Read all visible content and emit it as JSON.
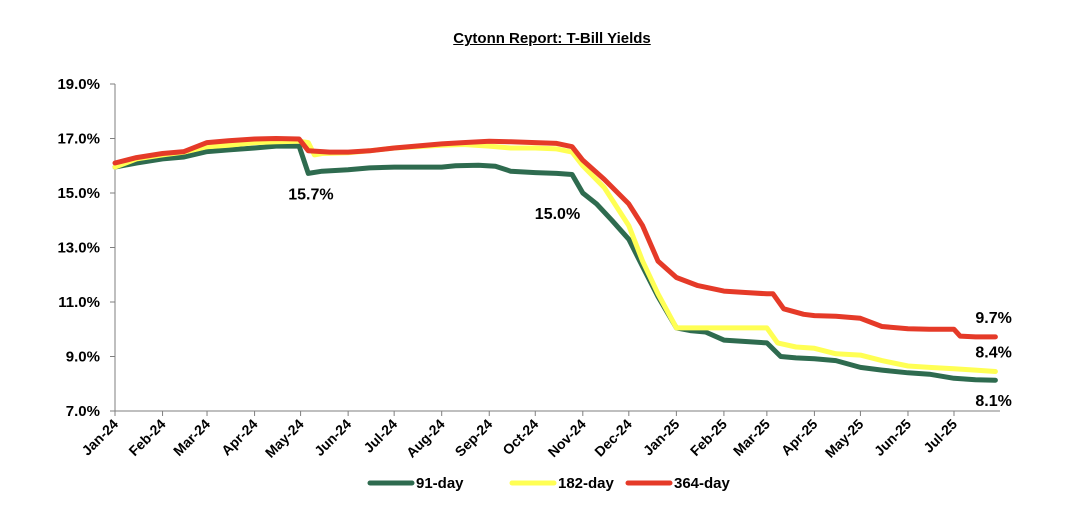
{
  "chart_data": {
    "type": "line",
    "title": "Cytonn Report: T-Bill Yields",
    "xlabel": "",
    "ylabel": "",
    "ylim": [
      7.0,
      19.0
    ],
    "y_ticks": [
      "7.0%",
      "9.0%",
      "11.0%",
      "13.0%",
      "15.0%",
      "17.0%",
      "19.0%"
    ],
    "y_tick_values": [
      7,
      9,
      11,
      13,
      15,
      17,
      19
    ],
    "x_ticks": [
      "Jan-24",
      "Feb-24",
      "Mar-24",
      "Apr-24",
      "May-24",
      "Jun-24",
      "Jul-24",
      "Aug-24",
      "Sep-24",
      "Oct-24",
      "Nov-24",
      "Dec-24",
      "Jan-25",
      "Feb-25",
      "Mar-25",
      "Apr-25",
      "May-25",
      "Jun-25",
      "Jul-25"
    ],
    "x_tick_dates": [
      "2024-01-01",
      "2024-02-01",
      "2024-03-01",
      "2024-04-01",
      "2024-05-01",
      "2024-06-01",
      "2024-07-01",
      "2024-08-01",
      "2024-09-01",
      "2024-10-01",
      "2024-11-01",
      "2024-12-01",
      "2025-01-01",
      "2025-02-01",
      "2025-03-01",
      "2025-04-01",
      "2025-05-01",
      "2025-06-01",
      "2025-07-01"
    ],
    "grid": false,
    "legend": "bottom",
    "series": [
      {
        "name": "91-day",
        "color": "#2e6b4f",
        "points": [
          [
            "2024-01-01",
            15.95
          ],
          [
            "2024-01-15",
            16.1
          ],
          [
            "2024-02-01",
            16.25
          ],
          [
            "2024-02-15",
            16.32
          ],
          [
            "2024-03-01",
            16.52
          ],
          [
            "2024-03-15",
            16.58
          ],
          [
            "2024-04-01",
            16.65
          ],
          [
            "2024-04-15",
            16.72
          ],
          [
            "2024-04-30",
            16.72
          ],
          [
            "2024-05-06",
            15.72
          ],
          [
            "2024-05-15",
            15.8
          ],
          [
            "2024-06-01",
            15.85
          ],
          [
            "2024-06-15",
            15.92
          ],
          [
            "2024-07-01",
            15.95
          ],
          [
            "2024-08-01",
            15.95
          ],
          [
            "2024-08-10",
            16.0
          ],
          [
            "2024-08-25",
            16.02
          ],
          [
            "2024-09-05",
            15.98
          ],
          [
            "2024-09-15",
            15.8
          ],
          [
            "2024-10-01",
            15.75
          ],
          [
            "2024-10-15",
            15.72
          ],
          [
            "2024-10-25",
            15.68
          ],
          [
            "2024-11-01",
            15.0
          ],
          [
            "2024-11-10",
            14.6
          ],
          [
            "2024-11-20",
            14.0
          ],
          [
            "2024-12-01",
            13.3
          ],
          [
            "2024-12-10",
            12.3
          ],
          [
            "2024-12-20",
            11.2
          ],
          [
            "2025-01-01",
            10.05
          ],
          [
            "2025-01-10",
            9.95
          ],
          [
            "2025-01-20",
            9.9
          ],
          [
            "2025-02-01",
            9.6
          ],
          [
            "2025-02-15",
            9.55
          ],
          [
            "2025-03-01",
            9.5
          ],
          [
            "2025-03-10",
            9.0
          ],
          [
            "2025-03-20",
            8.95
          ],
          [
            "2025-04-01",
            8.92
          ],
          [
            "2025-04-15",
            8.85
          ],
          [
            "2025-05-01",
            8.6
          ],
          [
            "2025-05-15",
            8.5
          ],
          [
            "2025-06-01",
            8.4
          ],
          [
            "2025-06-15",
            8.35
          ],
          [
            "2025-07-01",
            8.2
          ],
          [
            "2025-07-15",
            8.15
          ],
          [
            "2025-07-28",
            8.13
          ]
        ]
      },
      {
        "name": "182-day",
        "color": "#ffff54",
        "points": [
          [
            "2024-01-01",
            15.95
          ],
          [
            "2024-01-15",
            16.25
          ],
          [
            "2024-02-01",
            16.4
          ],
          [
            "2024-02-15",
            16.5
          ],
          [
            "2024-03-01",
            16.7
          ],
          [
            "2024-03-15",
            16.75
          ],
          [
            "2024-04-01",
            16.85
          ],
          [
            "2024-04-15",
            16.88
          ],
          [
            "2024-04-30",
            16.9
          ],
          [
            "2024-05-06",
            16.85
          ],
          [
            "2024-05-10",
            16.4
          ],
          [
            "2024-05-15",
            16.45
          ],
          [
            "2024-06-01",
            16.48
          ],
          [
            "2024-06-15",
            16.55
          ],
          [
            "2024-07-01",
            16.65
          ],
          [
            "2024-08-01",
            16.75
          ],
          [
            "2024-08-15",
            16.78
          ],
          [
            "2024-09-01",
            16.72
          ],
          [
            "2024-09-15",
            16.65
          ],
          [
            "2024-10-01",
            16.65
          ],
          [
            "2024-10-15",
            16.62
          ],
          [
            "2024-10-25",
            16.5
          ],
          [
            "2024-11-01",
            16.0
          ],
          [
            "2024-11-15",
            15.2
          ],
          [
            "2024-12-01",
            13.8
          ],
          [
            "2024-12-10",
            12.5
          ],
          [
            "2024-12-20",
            11.3
          ],
          [
            "2025-01-01",
            10.05
          ],
          [
            "2025-01-20",
            10.05
          ],
          [
            "2025-02-01",
            10.05
          ],
          [
            "2025-03-01",
            10.05
          ],
          [
            "2025-03-08",
            9.5
          ],
          [
            "2025-03-20",
            9.35
          ],
          [
            "2025-04-01",
            9.3
          ],
          [
            "2025-04-15",
            9.1
          ],
          [
            "2025-05-01",
            9.05
          ],
          [
            "2025-05-15",
            8.85
          ],
          [
            "2025-06-01",
            8.65
          ],
          [
            "2025-06-15",
            8.6
          ],
          [
            "2025-07-01",
            8.55
          ],
          [
            "2025-07-15",
            8.5
          ],
          [
            "2025-07-28",
            8.45
          ]
        ]
      },
      {
        "name": "364-day",
        "color": "#e53a28",
        "points": [
          [
            "2024-01-01",
            16.1
          ],
          [
            "2024-01-15",
            16.3
          ],
          [
            "2024-02-01",
            16.45
          ],
          [
            "2024-02-15",
            16.52
          ],
          [
            "2024-03-01",
            16.85
          ],
          [
            "2024-03-15",
            16.92
          ],
          [
            "2024-04-01",
            16.98
          ],
          [
            "2024-04-15",
            17.0
          ],
          [
            "2024-04-30",
            16.98
          ],
          [
            "2024-05-06",
            16.55
          ],
          [
            "2024-05-20",
            16.5
          ],
          [
            "2024-06-01",
            16.5
          ],
          [
            "2024-06-15",
            16.55
          ],
          [
            "2024-07-01",
            16.65
          ],
          [
            "2024-08-01",
            16.8
          ],
          [
            "2024-08-15",
            16.85
          ],
          [
            "2024-09-01",
            16.9
          ],
          [
            "2024-09-15",
            16.88
          ],
          [
            "2024-10-01",
            16.85
          ],
          [
            "2024-10-15",
            16.82
          ],
          [
            "2024-10-25",
            16.7
          ],
          [
            "2024-11-01",
            16.2
          ],
          [
            "2024-11-15",
            15.5
          ],
          [
            "2024-12-01",
            14.6
          ],
          [
            "2024-12-10",
            13.8
          ],
          [
            "2024-12-20",
            12.5
          ],
          [
            "2025-01-01",
            11.9
          ],
          [
            "2025-01-15",
            11.6
          ],
          [
            "2025-02-01",
            11.4
          ],
          [
            "2025-02-15",
            11.35
          ],
          [
            "2025-03-01",
            11.3
          ],
          [
            "2025-03-05",
            11.3
          ],
          [
            "2025-03-12",
            10.75
          ],
          [
            "2025-03-25",
            10.55
          ],
          [
            "2025-04-01",
            10.5
          ],
          [
            "2025-04-15",
            10.48
          ],
          [
            "2025-05-01",
            10.4
          ],
          [
            "2025-05-15",
            10.1
          ],
          [
            "2025-06-01",
            10.02
          ],
          [
            "2025-06-15",
            10.0
          ],
          [
            "2025-07-01",
            10.0
          ],
          [
            "2025-07-05",
            9.75
          ],
          [
            "2025-07-15",
            9.72
          ],
          [
            "2025-07-28",
            9.72
          ]
        ]
      }
    ],
    "annotations": [
      {
        "text": "15.7%",
        "date": "2024-05-06",
        "value": 15.72,
        "anchor": "below"
      },
      {
        "text": "15.0%",
        "date": "2024-11-01",
        "value": 15.0,
        "anchor": "below-left"
      },
      {
        "text": "9.7%",
        "date": "2025-07-28",
        "value": 9.72,
        "anchor": "above"
      },
      {
        "text": "8.4%",
        "date": "2025-07-28",
        "value": 8.45,
        "anchor": "above"
      },
      {
        "text": "8.1%",
        "date": "2025-07-28",
        "value": 8.13,
        "anchor": "below"
      }
    ]
  }
}
